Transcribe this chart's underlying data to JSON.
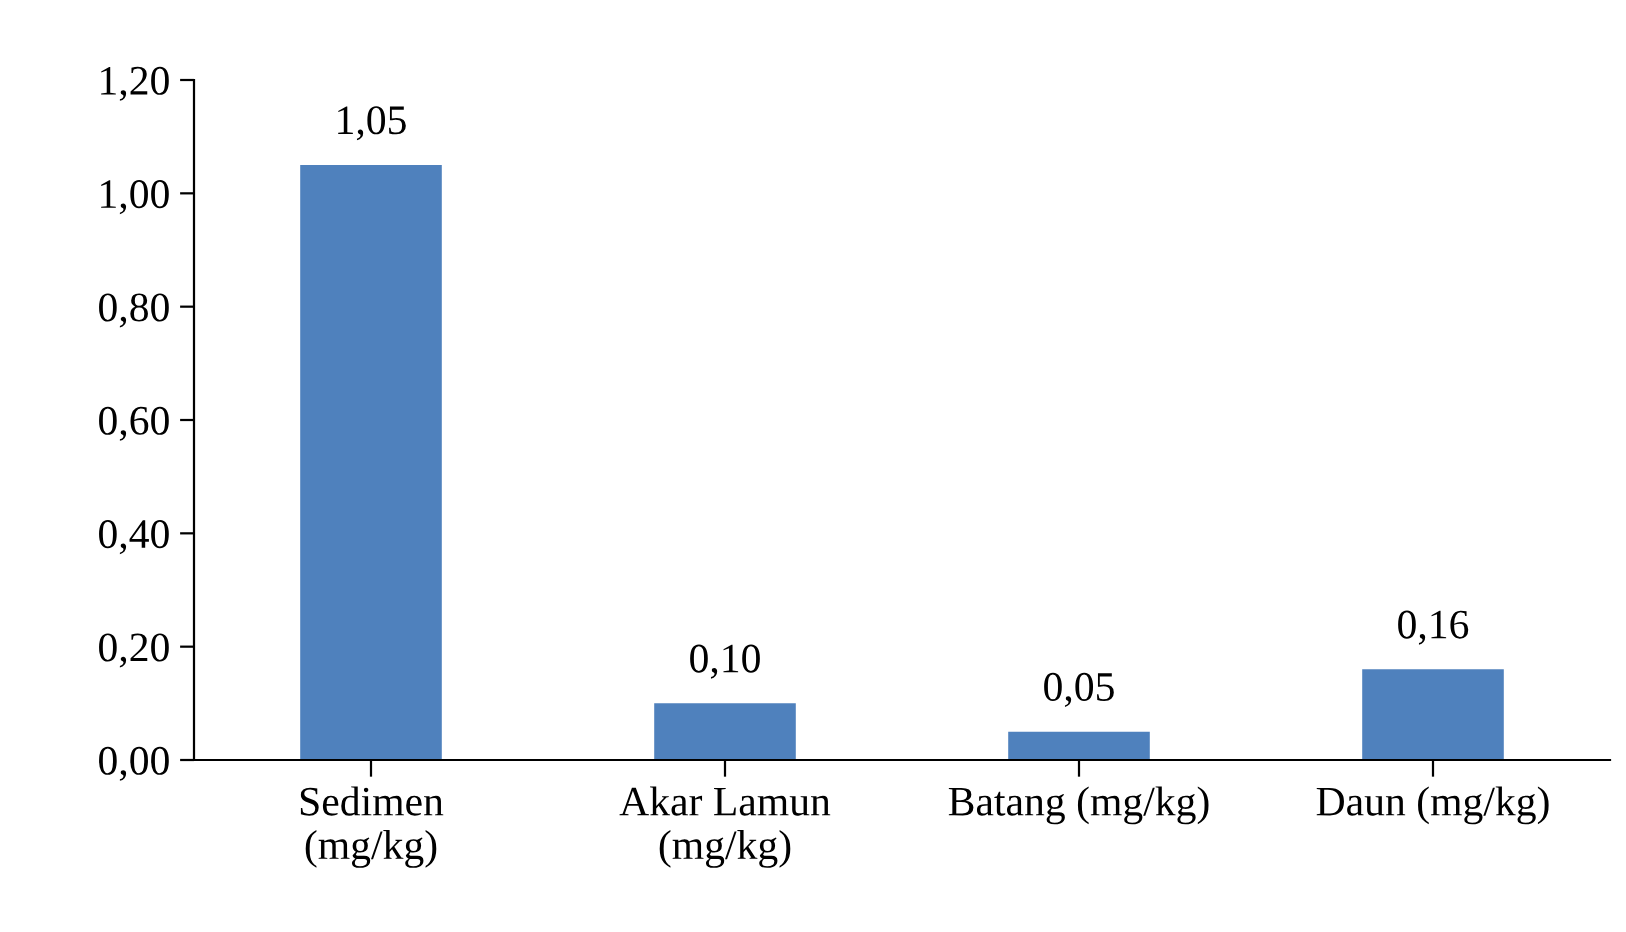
{
  "chart_data": {
    "type": "bar",
    "categories": [
      "Sedimen\n(mg/kg)",
      "Akar Lamun\n(mg/kg)",
      "Batang (mg/kg)",
      "Daun (mg/kg)"
    ],
    "values": [
      1.05,
      0.1,
      0.05,
      0.16
    ],
    "value_labels": [
      "1,05",
      "0,10",
      "0,05",
      "0,16"
    ],
    "color": "#4f81bd",
    "ylim": [
      0,
      1.2
    ],
    "yticks": [
      {
        "value": 0,
        "label": "0,00"
      },
      {
        "value": 0.2,
        "label": "0,20"
      },
      {
        "value": 0.4,
        "label": "0,40"
      },
      {
        "value": 0.6,
        "label": "0,60"
      },
      {
        "value": 0.8,
        "label": "0,80"
      },
      {
        "value": 1.0,
        "label": "1,00"
      },
      {
        "value": 1.2,
        "label": "1,20"
      }
    ],
    "grid": false,
    "legend": false
  }
}
